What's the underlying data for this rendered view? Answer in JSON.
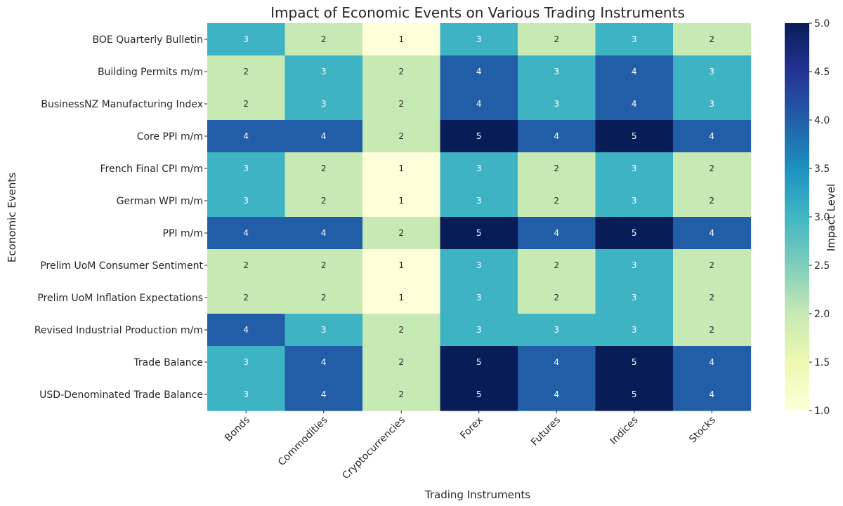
{
  "chart_data": {
    "type": "heatmap",
    "title": "Impact of Economic Events on Various Trading Instruments",
    "xlabel": "Trading Instruments",
    "ylabel": "Economic Events",
    "colorbar_label": "Impact Level",
    "colormap": "YlGnBu",
    "vmin": 1,
    "vmax": 5,
    "colorbar_ticks": [
      "1.0",
      "1.5",
      "2.0",
      "2.5",
      "3.0",
      "3.5",
      "4.0",
      "4.5",
      "5.0"
    ],
    "columns": [
      "Bonds",
      "Commodities",
      "Cryptocurrencies",
      "Forex",
      "Futures",
      "Indices",
      "Stocks"
    ],
    "rows": [
      "BOE Quarterly Bulletin",
      "Building Permits m/m",
      "BusinessNZ Manufacturing Index",
      "Core PPI m/m",
      "French Final CPI m/m",
      "German WPI m/m",
      "PPI m/m",
      "Prelim UoM Consumer Sentiment",
      "Prelim UoM Inflation Expectations",
      "Revised Industrial Production m/m",
      "Trade Balance",
      "USD-Denominated Trade Balance"
    ],
    "values": [
      [
        3,
        2,
        1,
        3,
        2,
        3,
        2
      ],
      [
        2,
        3,
        2,
        4,
        3,
        4,
        3
      ],
      [
        2,
        3,
        2,
        4,
        3,
        4,
        3
      ],
      [
        4,
        4,
        2,
        5,
        4,
        5,
        4
      ],
      [
        3,
        2,
        1,
        3,
        2,
        3,
        2
      ],
      [
        3,
        2,
        1,
        3,
        2,
        3,
        2
      ],
      [
        4,
        4,
        2,
        5,
        4,
        5,
        4
      ],
      [
        2,
        2,
        1,
        3,
        2,
        3,
        2
      ],
      [
        2,
        2,
        1,
        3,
        2,
        3,
        2
      ],
      [
        4,
        3,
        2,
        3,
        3,
        3,
        2
      ],
      [
        3,
        4,
        2,
        5,
        4,
        5,
        4
      ],
      [
        3,
        4,
        2,
        5,
        4,
        5,
        4
      ]
    ],
    "level_colors": {
      "1": "#ffffd9",
      "2": "#c7e9b4",
      "3": "#3eb3c4",
      "4": "#225ea8",
      "5": "#081d58"
    }
  }
}
